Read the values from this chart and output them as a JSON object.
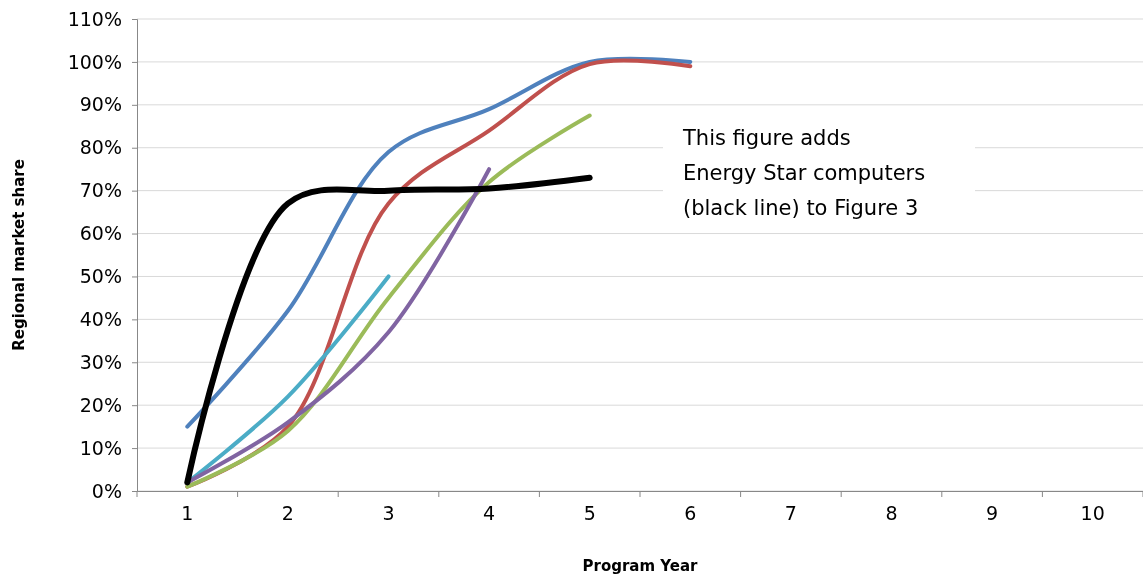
{
  "chart_data": {
    "type": "line",
    "xlabel": "Program Year",
    "ylabel": "Regional market share",
    "categories": [
      "1",
      "2",
      "3",
      "4",
      "5",
      "6",
      "7",
      "8",
      "9",
      "10"
    ],
    "series": [
      {
        "color": "#4f81bd",
        "values": [
          15,
          42,
          79,
          89,
          100,
          100,
          null,
          null,
          null,
          null
        ]
      },
      {
        "color": "#c0504d",
        "values": [
          1,
          15,
          67,
          84,
          99.5,
          99,
          null,
          null,
          null,
          null
        ]
      },
      {
        "color": "#9bbb59",
        "values": [
          1,
          14,
          45,
          72,
          87.5,
          null,
          null,
          null,
          null,
          null
        ]
      },
      {
        "color": "#4bacc6",
        "values": [
          2,
          22,
          50,
          null,
          null,
          null,
          null,
          null,
          null,
          null
        ]
      },
      {
        "color": "#8064a2",
        "values": [
          2,
          16,
          37,
          75,
          null,
          null,
          null,
          null,
          null,
          null
        ]
      },
      {
        "color": "#000000",
        "values": [
          2,
          67,
          70,
          70.5,
          73,
          null,
          null,
          null,
          null,
          null
        ]
      }
    ],
    "ylim": [
      0,
      110
    ],
    "yticks": [
      {
        "value": 0,
        "label": "0%"
      },
      {
        "value": 10,
        "label": "10%"
      },
      {
        "value": 20,
        "label": "20%"
      },
      {
        "value": 30,
        "label": "30%"
      },
      {
        "value": 40,
        "label": "40%"
      },
      {
        "value": 50,
        "label": "50%"
      },
      {
        "value": 60,
        "label": "60%"
      },
      {
        "value": 70,
        "label": "70%"
      },
      {
        "value": 80,
        "label": "80%"
      },
      {
        "value": 90,
        "label": "90%"
      },
      {
        "value": 100,
        "label": "100%"
      },
      {
        "value": 110,
        "label": "110%"
      }
    ],
    "grid": "y",
    "marker": "none",
    "line_style": "solid",
    "annotations": [
      "This figure adds\nEnergy Star computers\n(black line) to Figure 3"
    ]
  }
}
